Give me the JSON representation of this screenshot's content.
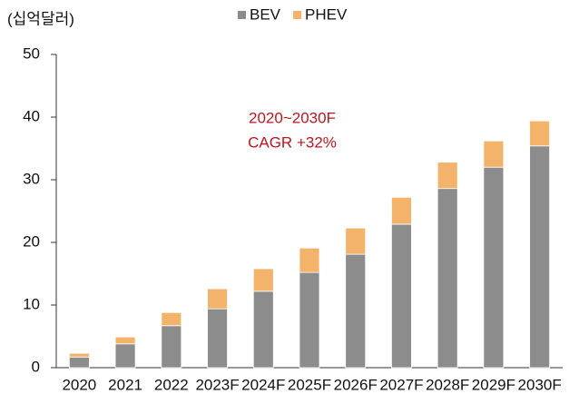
{
  "chart_data": {
    "type": "bar",
    "stacked": true,
    "y_axis_label": "(십억달러)",
    "annotation": [
      "2020~2030F",
      "CAGR +32%"
    ],
    "categories": [
      "2020",
      "2021",
      "2022",
      "2023F",
      "2024F",
      "2025F",
      "2026F",
      "2027F",
      "2028F",
      "2029F",
      "2030F"
    ],
    "series": [
      {
        "name": "BEV",
        "color": "#8c8c8c",
        "values": [
          1.7,
          3.8,
          6.7,
          9.4,
          12.2,
          15.2,
          18.1,
          22.9,
          28.6,
          32.0,
          35.4
        ]
      },
      {
        "name": "PHEV",
        "color": "#f4b36b",
        "values": [
          0.6,
          1.1,
          2.1,
          3.2,
          3.6,
          3.9,
          4.2,
          4.3,
          4.2,
          4.2,
          4.0
        ]
      }
    ],
    "ylim": [
      0,
      50
    ],
    "yticks": [
      0,
      10,
      20,
      30,
      40,
      50
    ],
    "legend": "top"
  }
}
